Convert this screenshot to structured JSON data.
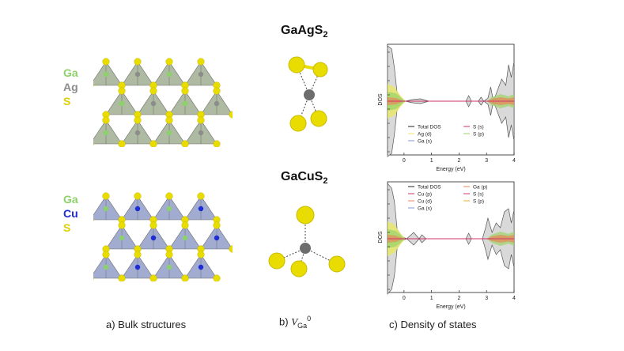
{
  "colors": {
    "ga": "#8cd16a",
    "ag": "#8c8c8c",
    "cu": "#1f2bd6",
    "s": "#e9dc00",
    "tetra_ag": "#9aa98a",
    "tetra_cu": "#8a97c4"
  },
  "legend_ag": [
    "Ga",
    "Ag",
    "S"
  ],
  "legend_cu": [
    "Ga",
    "Cu",
    "S"
  ],
  "formula_top": {
    "main": "GaAgS",
    "sub": "2"
  },
  "formula_bottom": {
    "main": "GaCuS",
    "sub": "2"
  },
  "captions": {
    "a": "a) Bulk structures",
    "b_prefix": "b)",
    "b_symbol": "V",
    "b_sub": "Ga",
    "b_sup": "0",
    "c": "c) Density of states"
  },
  "dos_top": {
    "ylabel": "DOS",
    "xlabel": "Energy (eV)",
    "x_ticks": [
      "0",
      "1",
      "2",
      "3",
      "4"
    ],
    "xlim": [
      -0.6,
      4
    ],
    "legend_col1": [
      "Total DOS",
      "Ag (d)",
      "Ga (s)"
    ],
    "legend_col2": [
      "S (s)",
      "S (p)"
    ]
  },
  "dos_bottom": {
    "ylabel": "DOS",
    "xlabel": "Energy (eV)",
    "x_ticks": [
      "0",
      "1",
      "2",
      "3",
      "4"
    ],
    "xlim": [
      -0.6,
      4
    ],
    "legend_col1": [
      "Total DOS",
      "Cu (p)",
      "Cu (d)",
      "Ga (s)"
    ],
    "legend_col2": [
      "Ga (p)",
      "S (s)",
      "S (p)"
    ]
  }
}
